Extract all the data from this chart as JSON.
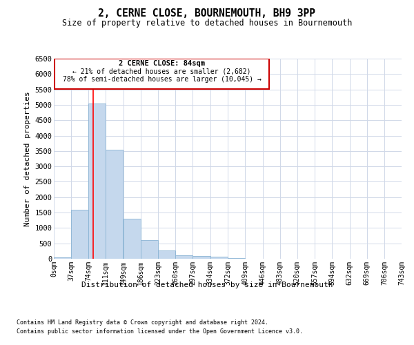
{
  "title": "2, CERNE CLOSE, BOURNEMOUTH, BH9 3PP",
  "subtitle": "Size of property relative to detached houses in Bournemouth",
  "xlabel": "Distribution of detached houses by size in Bournemouth",
  "ylabel": "Number of detached properties",
  "footnote1": "Contains HM Land Registry data © Crown copyright and database right 2024.",
  "footnote2": "Contains public sector information licensed under the Open Government Licence v3.0.",
  "bar_color": "#c5d8ed",
  "bar_edge_color": "#8ab4d4",
  "grid_color": "#d0d8e8",
  "annotation_box_color": "#cc0000",
  "annotation_text": "2 CERNE CLOSE: 84sqm",
  "annotation_line1": "← 21% of detached houses are smaller (2,682)",
  "annotation_line2": "78% of semi-detached houses are larger (10,045) →",
  "property_line_x": 84,
  "ylim": [
    0,
    6500
  ],
  "yticks": [
    0,
    500,
    1000,
    1500,
    2000,
    2500,
    3000,
    3500,
    4000,
    4500,
    5000,
    5500,
    6000,
    6500
  ],
  "bin_edges": [
    0,
    37,
    74,
    111,
    149,
    186,
    223,
    260,
    297,
    334,
    372,
    409,
    446,
    483,
    520,
    557,
    594,
    632,
    669,
    706,
    743
  ],
  "bin_labels": [
    "0sqm",
    "37sqm",
    "74sqm",
    "111sqm",
    "149sqm",
    "186sqm",
    "223sqm",
    "260sqm",
    "297sqm",
    "334sqm",
    "372sqm",
    "409sqm",
    "446sqm",
    "483sqm",
    "520sqm",
    "557sqm",
    "594sqm",
    "632sqm",
    "669sqm",
    "706sqm",
    "743sqm"
  ],
  "bar_heights": [
    50,
    1600,
    5050,
    3550,
    1300,
    600,
    280,
    120,
    90,
    60,
    30,
    10,
    5,
    3,
    2,
    1,
    1,
    0,
    0,
    0
  ]
}
